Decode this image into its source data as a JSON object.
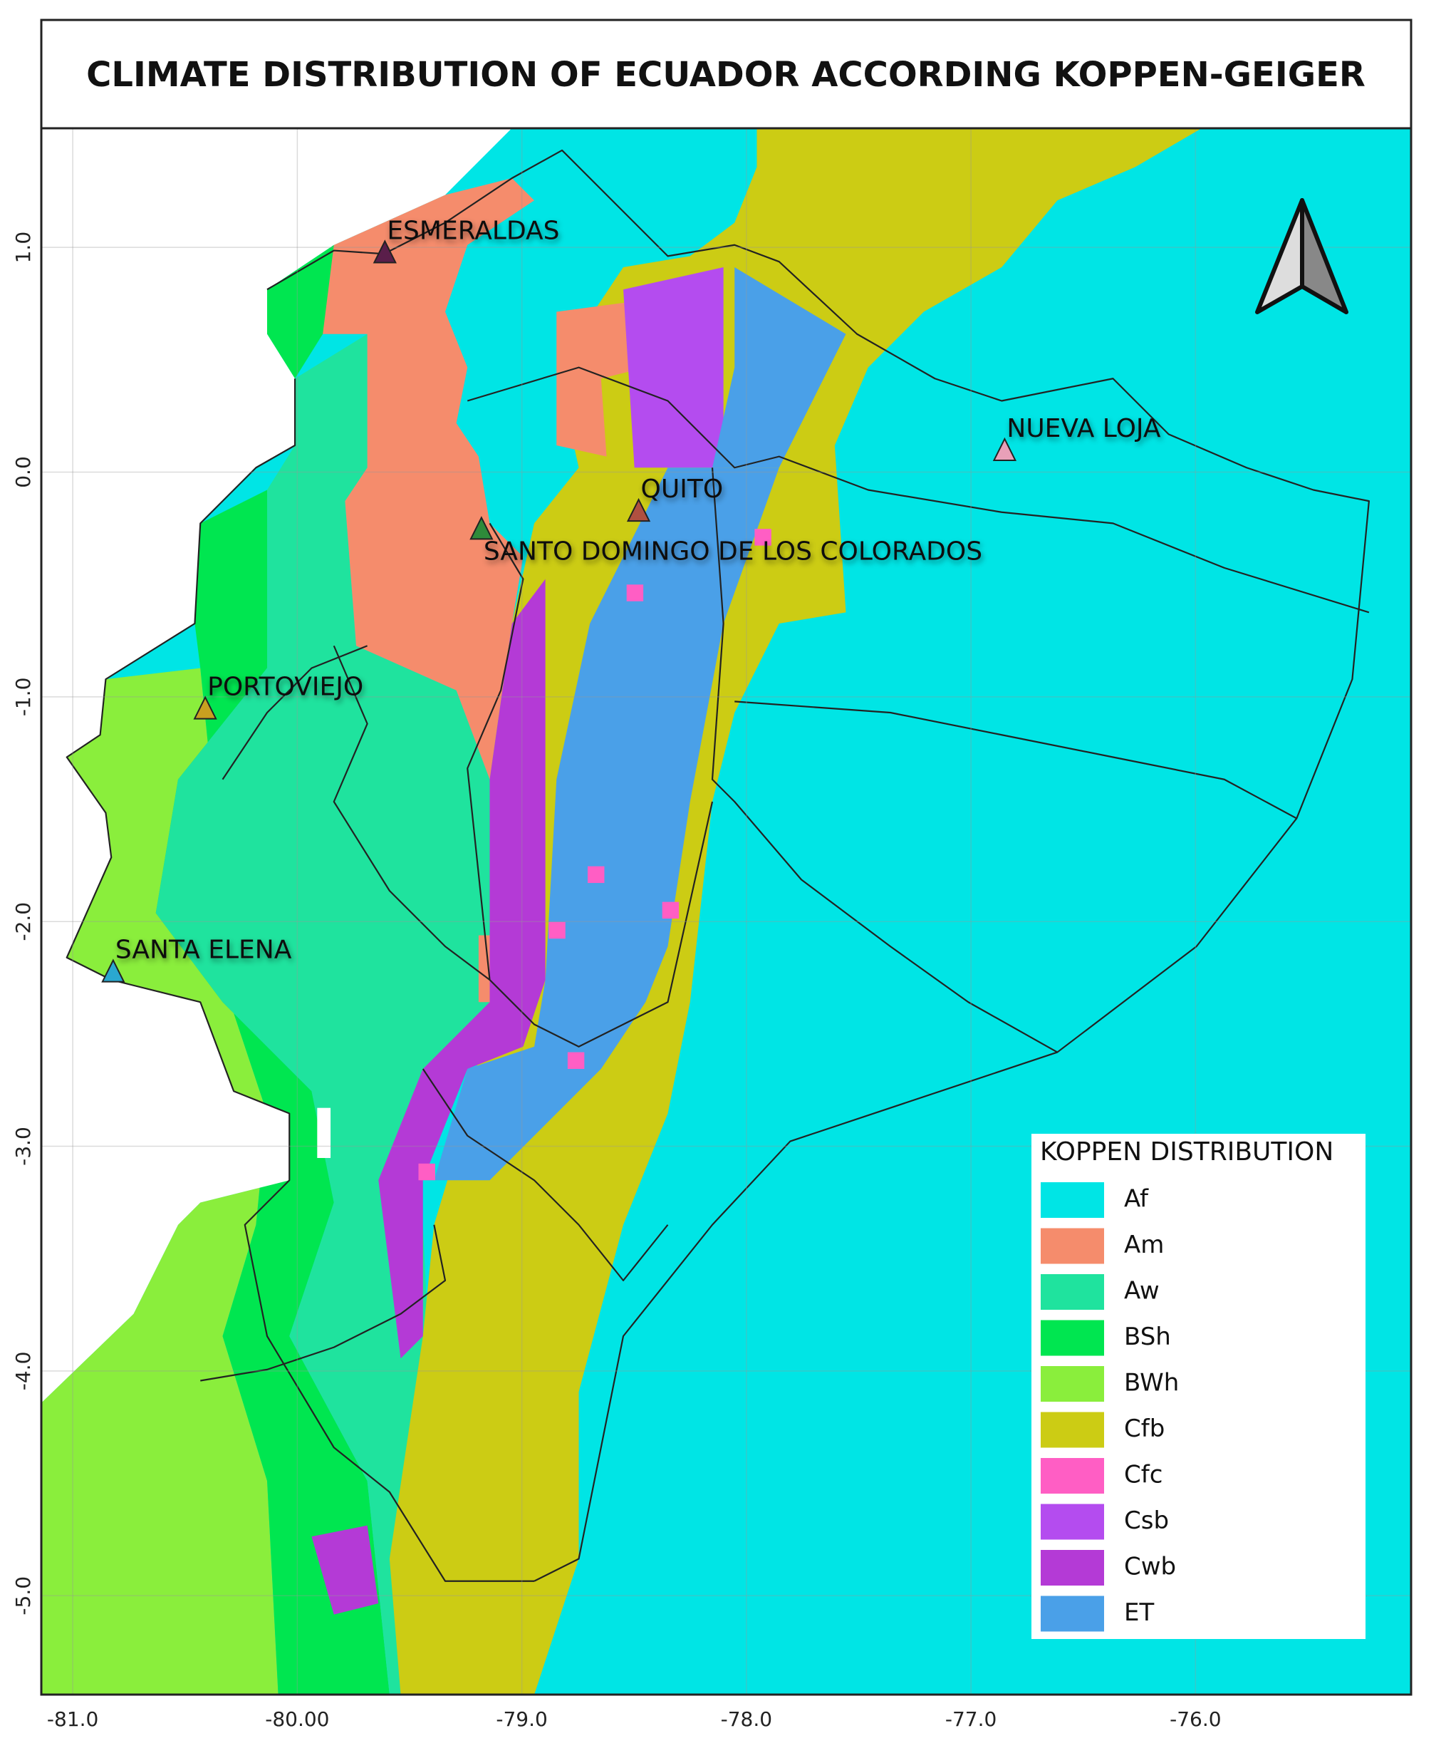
{
  "title": "CLIMATE DISTRIBUTION OF ECUADOR ACCORDING KOPPEN-GEIGER",
  "map": {
    "xlim": [
      -81.14,
      -75.04
    ],
    "ylim": [
      -5.44,
      1.53
    ],
    "xticks": [
      {
        "value": -81,
        "label": "-81.0"
      },
      {
        "value": -80,
        "label": "-80.00"
      },
      {
        "value": -79,
        "label": "-79.0"
      },
      {
        "value": -78,
        "label": "-78.0"
      },
      {
        "value": -77,
        "label": "-77.0"
      },
      {
        "value": -76,
        "label": "-76.0"
      }
    ],
    "yticks": [
      {
        "value": 1,
        "label": "1.0"
      },
      {
        "value": 0,
        "label": "0.0"
      },
      {
        "value": -1,
        "label": "-1.0"
      },
      {
        "value": -2,
        "label": "-2.0"
      },
      {
        "value": -3,
        "label": "-3.0"
      },
      {
        "value": -4,
        "label": "-4.0"
      },
      {
        "value": -5,
        "label": "-5.0"
      }
    ],
    "cities": [
      {
        "name": "ESMERALDAS",
        "lon": -79.61,
        "lat": 0.98,
        "color": "#5a1e4a"
      },
      {
        "name": "QUITO",
        "lon": -78.48,
        "lat": -0.17,
        "color": "#b05040"
      },
      {
        "name": "SANTO DOMINGO DE LOS COLORADOS",
        "lon": -79.18,
        "lat": -0.25,
        "color": "#2e8b3a"
      },
      {
        "name": "NUEVA LOJA",
        "lon": -76.85,
        "lat": 0.1,
        "color": "#e8a0b8"
      },
      {
        "name": "PORTOVIEJO",
        "lon": -80.41,
        "lat": -1.05,
        "color": "#c8a020"
      },
      {
        "name": "SANTA ELENA",
        "lon": -80.82,
        "lat": -2.22,
        "color": "#2aa8d0"
      }
    ]
  },
  "legend": {
    "title": "KOPPEN DISTRIBUTION",
    "items": [
      {
        "label": "Af",
        "color": "#00e5e5"
      },
      {
        "label": "Am",
        "color": "#f58c6c"
      },
      {
        "label": "Aw",
        "color": "#1fe39e"
      },
      {
        "label": "BSh",
        "color": "#00e650"
      },
      {
        "label": "BWh",
        "color": "#8aee3c"
      },
      {
        "label": "Cfb",
        "color": "#cccc14"
      },
      {
        "label": "Cfc",
        "color": "#ff5ec4"
      },
      {
        "label": "Csb",
        "color": "#b44cef"
      },
      {
        "label": "Cwb",
        "color": "#b43ad6"
      },
      {
        "label": "ET",
        "color": "#4aa0e8"
      }
    ]
  }
}
